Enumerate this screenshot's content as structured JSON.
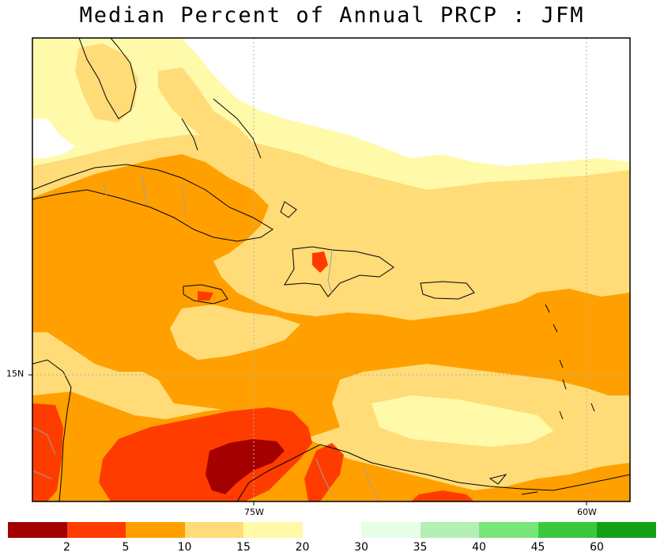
{
  "title": "Median Percent of Annual PRCP  :  JFM",
  "axes": {
    "lat_label": "15N",
    "lon_labels": [
      "75W",
      "60W"
    ]
  },
  "legend": {
    "bins": [
      {
        "color": "#a50000",
        "label": "2"
      },
      {
        "color": "#ff3c00",
        "label": "5"
      },
      {
        "color": "#ffa000",
        "label": "10"
      },
      {
        "color": "#ffdc78",
        "label": "15"
      },
      {
        "color": "#fffaaa",
        "label": "20"
      },
      {
        "color": "#ffffff",
        "label": "30"
      },
      {
        "color": "#e6ffe6",
        "label": "35"
      },
      {
        "color": "#b4f0b4",
        "label": "40"
      },
      {
        "color": "#78e678",
        "label": "45"
      },
      {
        "color": "#3cc83c",
        "label": "60"
      },
      {
        "color": "#14a014",
        "label": ""
      }
    ]
  },
  "colors": {
    "deep_red": "#a50000",
    "red": "#ff3c00",
    "orange": "#ffa000",
    "light_orange": "#ffdc78",
    "pale_yellow": "#fffaaa",
    "coast": "#000000",
    "borders": "#a0a0a0"
  }
}
